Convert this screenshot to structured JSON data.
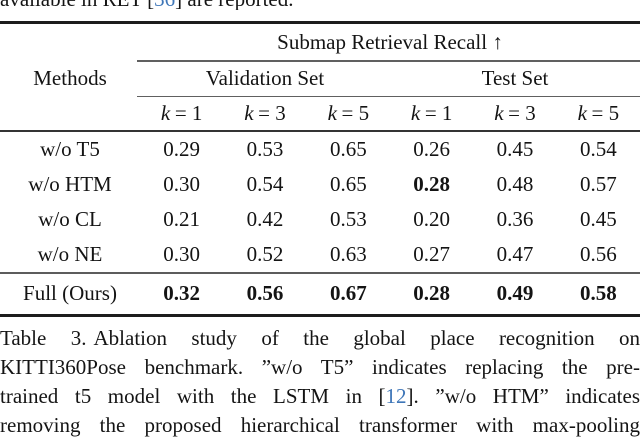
{
  "clipped_line": {
    "pre": "available in RET [",
    "cite": "36",
    "post": "] are reported."
  },
  "table": {
    "group_header": "Submap Retrieval Recall ↑",
    "methods_label": "Methods",
    "validation_label": "Validation Set",
    "test_label": "Test Set",
    "k_cols": [
      {
        "var": "k",
        "eq": "= 1"
      },
      {
        "var": "k",
        "eq": "= 3"
      },
      {
        "var": "k",
        "eq": "= 5"
      },
      {
        "var": "k",
        "eq": "= 1"
      },
      {
        "var": "k",
        "eq": "= 3"
      },
      {
        "var": "k",
        "eq": "= 5"
      }
    ],
    "rows": [
      {
        "method": "w/o T5",
        "values": [
          "0.29",
          "0.53",
          "0.65",
          "0.26",
          "0.45",
          "0.54"
        ]
      },
      {
        "method": "w/o HTM",
        "values": [
          "0.30",
          "0.54",
          "0.65",
          "0.28",
          "0.48",
          "0.57"
        ]
      },
      {
        "method": "w/o CL",
        "values": [
          "0.21",
          "0.42",
          "0.53",
          "0.20",
          "0.36",
          "0.45"
        ]
      },
      {
        "method": "w/o NE",
        "values": [
          "0.30",
          "0.52",
          "0.63",
          "0.27",
          "0.47",
          "0.56"
        ]
      },
      {
        "method": "Full (Ours)",
        "values": [
          "0.32",
          "0.56",
          "0.67",
          "0.28",
          "0.49",
          "0.58"
        ]
      }
    ]
  },
  "caption": {
    "label": "Table 3.",
    "line1_rest": "Ablation study of the global place recognition on",
    "line2": "KITTI360Pose benchmark. ”w/o T5” indicates replacing the pre-",
    "line3_pre": "trained t5 model with the LSTM in [",
    "line3_cite": "12",
    "line3_post": "]. ”w/o HTM” indicates",
    "line4": "removing the proposed hierarchical transformer with max-pooling"
  },
  "colors": {
    "citation_blue": "#3e76b8",
    "text": "#141414"
  }
}
